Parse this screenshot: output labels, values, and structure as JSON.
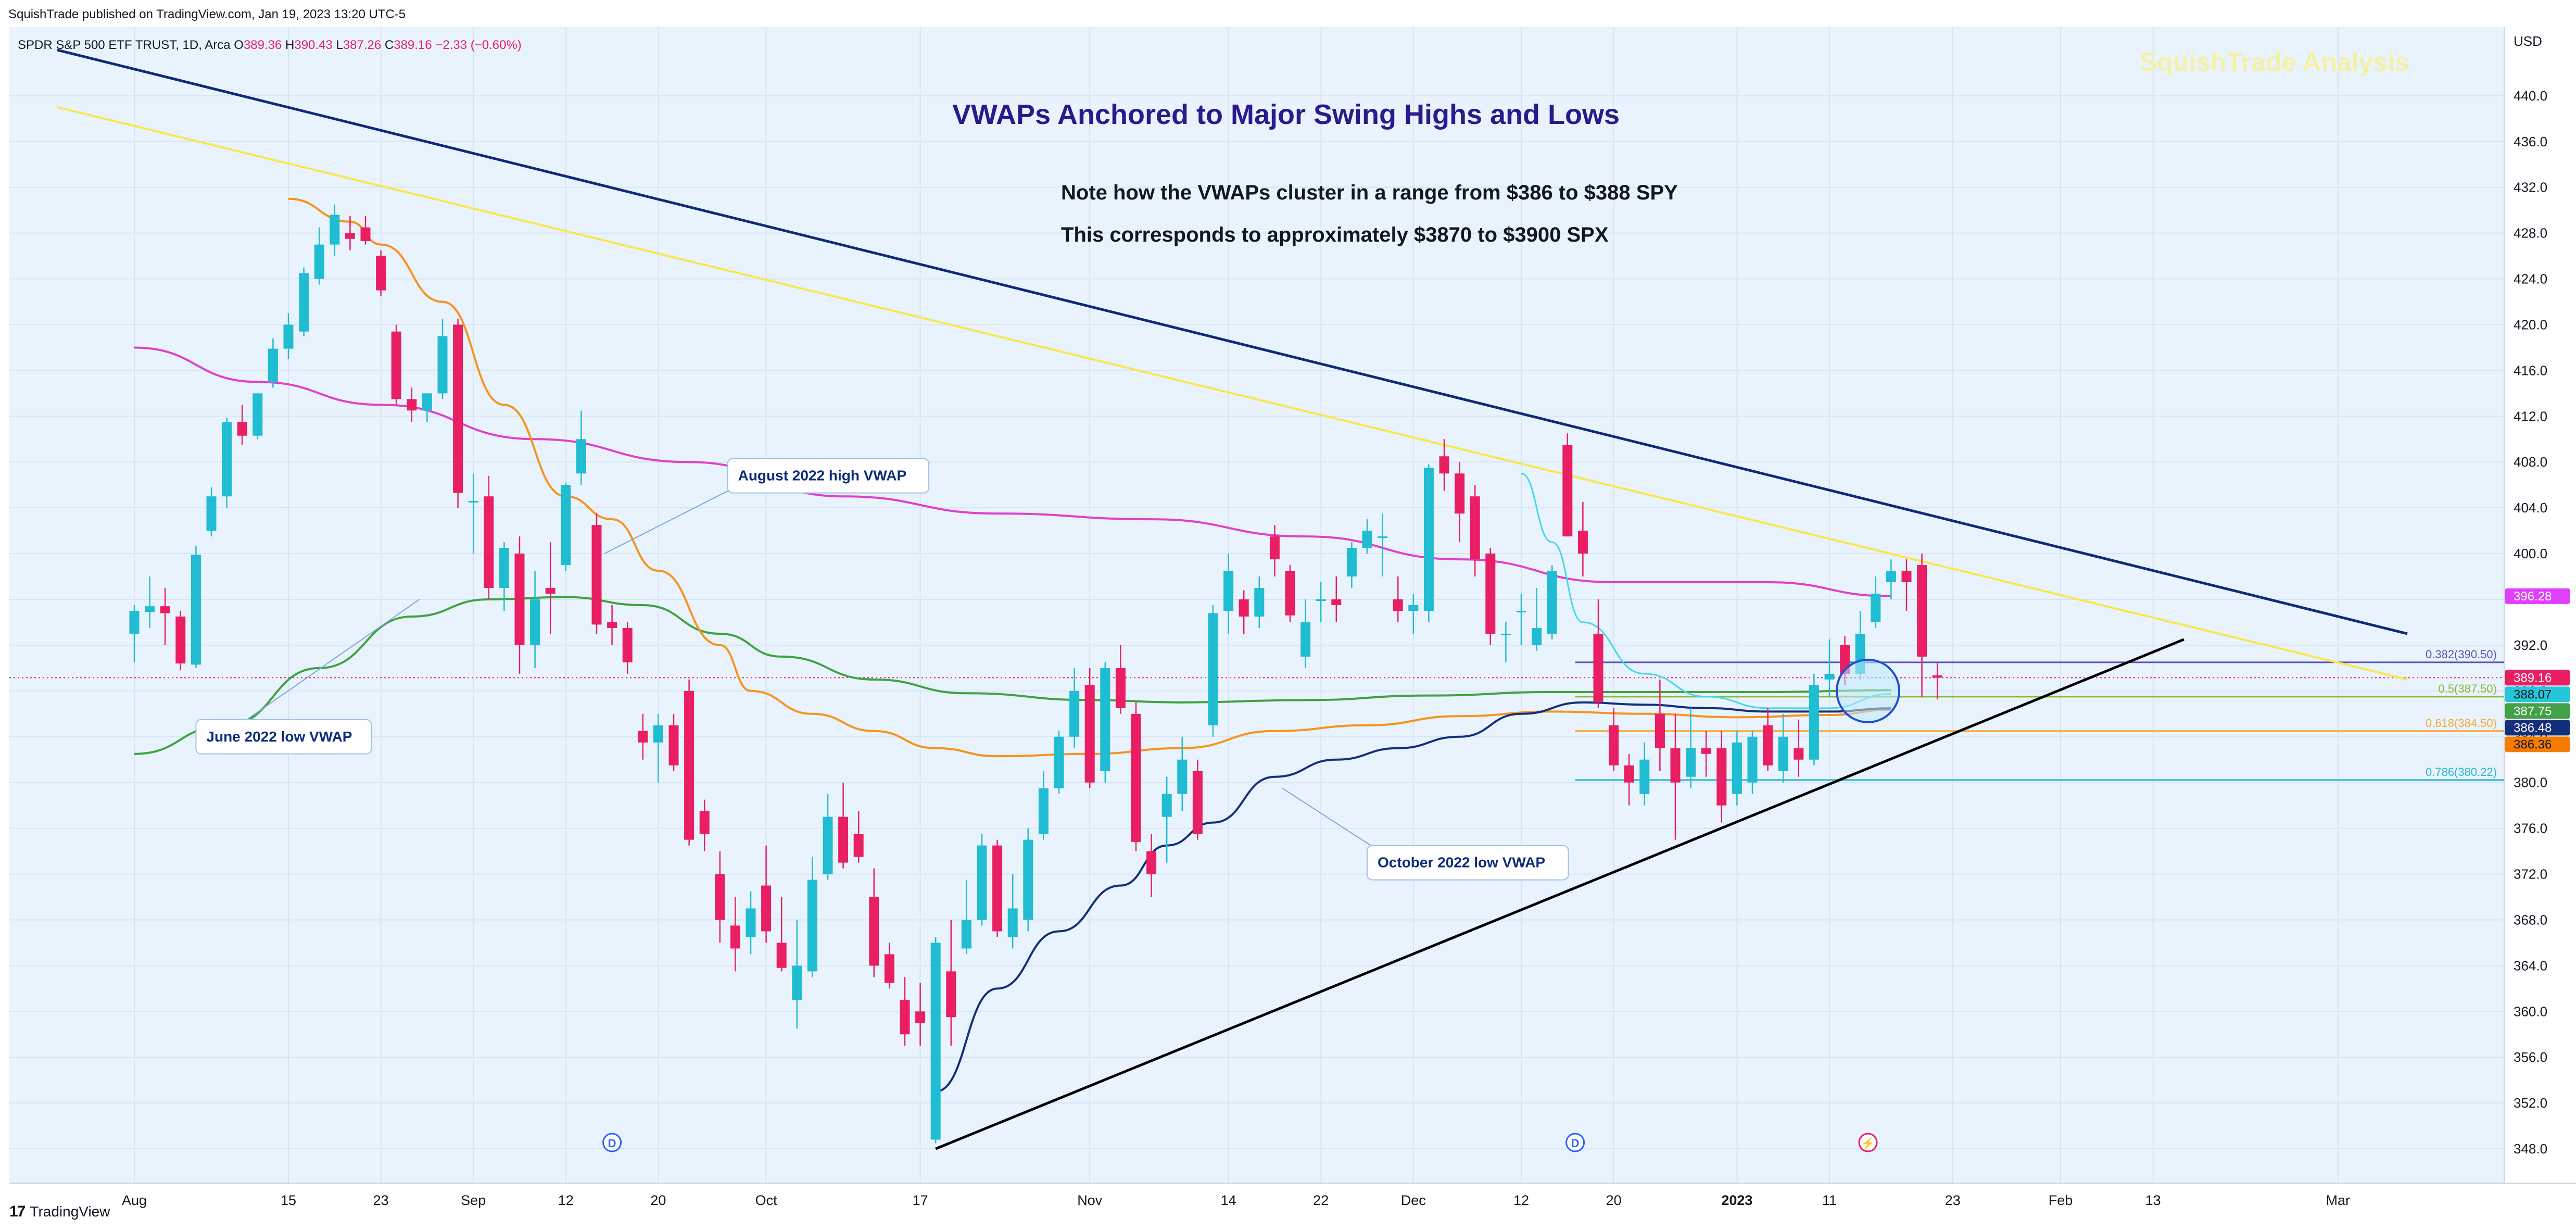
{
  "published": "SquishTrade published on TradingView.com, Jan 19, 2023 13:20 UTC-5",
  "brand_footer": "TradingView",
  "symbol_title": "SPDR S&P 500 ETF TRUST, 1D, Arca",
  "ohlc": {
    "o_label": "O",
    "o": "389.36",
    "h_label": "H",
    "h": "390.43",
    "l_label": "L",
    "l": "387.26",
    "c_label": "C",
    "c": "389.16",
    "chg": "−2.33 (−0.60%)"
  },
  "watermark": "SquishTrade Analysis",
  "currency": "USD",
  "colors": {
    "bg": "#e9f3fd",
    "up": "#1fbcd2",
    "down": "#e91e63",
    "title": "#2a1a8c",
    "navy": "#0d2b7a",
    "yellow": "#f7e84a",
    "magenta": "#e040c8",
    "orange": "#f7931e",
    "green": "#3ea43e",
    "darkblue": "#142f7a",
    "cyan": "#44d8e8",
    "black": "#000000"
  },
  "chart_data": {
    "type": "candlestick",
    "title": "VWAPs Anchored to Major Swing Highs and Lows",
    "notes": [
      "Note how the VWAPs cluster in a range from $386 to $388 SPY",
      "This corresponds to approximately $3870 to $3900 SPX"
    ],
    "ylim": [
      345,
      446
    ],
    "price_ticks": [
      440,
      436,
      432,
      428,
      424,
      420,
      416,
      412,
      408,
      404,
      400,
      396,
      392,
      388,
      384,
      380,
      376,
      372,
      368,
      364,
      360,
      356,
      352,
      348
    ],
    "time_ticks": [
      {
        "label": "Aug",
        "i": 0
      },
      {
        "label": "15",
        "i": 10
      },
      {
        "label": "23",
        "i": 16
      },
      {
        "label": "Sep",
        "i": 22
      },
      {
        "label": "12",
        "i": 28
      },
      {
        "label": "20",
        "i": 34
      },
      {
        "label": "Oct",
        "i": 41
      },
      {
        "label": "17",
        "i": 51
      },
      {
        "label": "Nov",
        "i": 62
      },
      {
        "label": "14",
        "i": 71
      },
      {
        "label": "22",
        "i": 77
      },
      {
        "label": "Dec",
        "i": 83
      },
      {
        "label": "12",
        "i": 90
      },
      {
        "label": "20",
        "i": 96
      },
      {
        "label": "2023",
        "i": 104,
        "bold": true
      },
      {
        "label": "11",
        "i": 110
      },
      {
        "label": "23",
        "i": 118
      },
      {
        "label": "Feb",
        "i": 125
      },
      {
        "label": "13",
        "i": 131
      },
      {
        "label": "Mar",
        "i": 143
      }
    ],
    "candles": [
      [
        393.0,
        395.5,
        390.5,
        395.0
      ],
      [
        394.9,
        398.0,
        393.5,
        395.4
      ],
      [
        395.4,
        397.0,
        392.0,
        394.8
      ],
      [
        394.5,
        395.0,
        389.8,
        390.4
      ],
      [
        390.3,
        400.7,
        390.0,
        399.9
      ],
      [
        402.0,
        405.8,
        401.5,
        405.0
      ],
      [
        405.0,
        411.9,
        404.0,
        411.5
      ],
      [
        411.5,
        413.0,
        409.5,
        410.3
      ],
      [
        410.3,
        414.0,
        410.0,
        414.0
      ],
      [
        415.0,
        418.8,
        414.5,
        417.9
      ],
      [
        417.9,
        421.0,
        417.0,
        420.0
      ],
      [
        419.4,
        425.0,
        419.0,
        424.5
      ],
      [
        424.0,
        428.5,
        423.5,
        427.0
      ],
      [
        427.0,
        430.5,
        426.0,
        429.6
      ],
      [
        428.0,
        429.5,
        426.5,
        427.5
      ],
      [
        428.5,
        429.5,
        427.0,
        427.3
      ],
      [
        426.0,
        426.5,
        422.5,
        423.0
      ],
      [
        419.4,
        420.0,
        413.0,
        413.5
      ],
      [
        413.5,
        414.5,
        411.5,
        412.5
      ],
      [
        412.5,
        414.0,
        411.5,
        414.0
      ],
      [
        414.0,
        420.5,
        413.5,
        419.0
      ],
      [
        420.0,
        420.5,
        404.0,
        405.3
      ],
      [
        404.5,
        407.0,
        400.0,
        404.6
      ],
      [
        405.0,
        406.8,
        396.0,
        397.0
      ],
      [
        397.0,
        401.0,
        395.0,
        400.5
      ],
      [
        400.0,
        401.5,
        389.5,
        392.0
      ],
      [
        392.0,
        398.5,
        390.0,
        396.0
      ],
      [
        397.0,
        401.0,
        393.0,
        396.5
      ],
      [
        399.0,
        406.2,
        398.5,
        406.0
      ],
      [
        407.0,
        412.5,
        406.0,
        410.0
      ],
      [
        402.5,
        403.5,
        393.0,
        393.8
      ],
      [
        394.0,
        395.5,
        392.0,
        393.5
      ],
      [
        393.5,
        394.0,
        389.5,
        390.5
      ],
      [
        384.5,
        386.0,
        382.0,
        383.5
      ],
      [
        383.5,
        386.0,
        380.0,
        385.0
      ],
      [
        385.0,
        386.0,
        381.0,
        381.5
      ],
      [
        388.0,
        389.0,
        374.5,
        375.0
      ],
      [
        377.5,
        378.5,
        374.0,
        375.5
      ],
      [
        372.0,
        374.0,
        366.0,
        368.0
      ],
      [
        367.5,
        370.0,
        363.5,
        365.5
      ],
      [
        366.5,
        370.5,
        365.0,
        369.0
      ],
      [
        371.0,
        374.5,
        366.0,
        367.0
      ],
      [
        366.0,
        370.0,
        363.5,
        363.8
      ],
      [
        361.0,
        368.0,
        358.5,
        364.0
      ],
      [
        363.5,
        373.5,
        363.0,
        371.5
      ],
      [
        372.0,
        379.0,
        371.5,
        377.0
      ],
      [
        377.0,
        380.0,
        372.5,
        373.0
      ],
      [
        375.5,
        377.5,
        373.0,
        373.5
      ],
      [
        370.0,
        372.5,
        363.0,
        364.0
      ],
      [
        365.0,
        366.0,
        362.0,
        362.5
      ],
      [
        361.0,
        363.0,
        357.0,
        358.0
      ],
      [
        360.0,
        362.5,
        357.0,
        359.0
      ],
      [
        348.8,
        366.5,
        348.5,
        366.0
      ],
      [
        363.5,
        368.0,
        357.0,
        359.5
      ],
      [
        365.5,
        371.5,
        365.0,
        368.0
      ],
      [
        368.0,
        375.5,
        367.5,
        374.5
      ],
      [
        374.5,
        375.0,
        366.5,
        367.0
      ],
      [
        366.5,
        372.0,
        365.5,
        369.0
      ],
      [
        368.0,
        376.0,
        367.0,
        375.0
      ],
      [
        375.5,
        381.0,
        375.0,
        379.5
      ],
      [
        379.5,
        384.5,
        379.0,
        384.0
      ],
      [
        384.0,
        390.0,
        383.0,
        388.0
      ],
      [
        388.5,
        390.0,
        379.5,
        380.0
      ],
      [
        381.0,
        390.5,
        380.0,
        390.0
      ],
      [
        390.0,
        392.0,
        386.0,
        386.5
      ],
      [
        386.0,
        387.0,
        374.0,
        374.8
      ],
      [
        374.0,
        375.5,
        370.0,
        372.0
      ],
      [
        377.0,
        380.5,
        373.0,
        379.0
      ],
      [
        379.0,
        384.0,
        377.5,
        382.0
      ],
      [
        381.0,
        382.0,
        375.0,
        375.5
      ],
      [
        385.0,
        395.5,
        384.0,
        394.8
      ],
      [
        395.0,
        400.0,
        393.0,
        398.5
      ],
      [
        396.0,
        396.8,
        393.0,
        394.5
      ],
      [
        394.5,
        398.0,
        393.5,
        397.0
      ],
      [
        401.5,
        402.5,
        398.0,
        399.5
      ],
      [
        398.5,
        399.0,
        394.0,
        394.6
      ],
      [
        391.0,
        396.0,
        390.0,
        394.0
      ],
      [
        396.0,
        397.5,
        394.0,
        396.0
      ],
      [
        396.0,
        398.0,
        394.0,
        395.5
      ],
      [
        398.0,
        401.0,
        397.0,
        400.5
      ],
      [
        400.5,
        403.0,
        400.0,
        402.0
      ],
      [
        401.5,
        403.5,
        398.0,
        401.5
      ],
      [
        396.0,
        398.0,
        394.0,
        395.0
      ],
      [
        395.0,
        396.5,
        393.0,
        395.5
      ],
      [
        395.0,
        407.8,
        394.0,
        407.5
      ],
      [
        408.5,
        410.0,
        405.5,
        407.0
      ],
      [
        407.0,
        408.0,
        401.0,
        403.5
      ],
      [
        405.0,
        406.0,
        398.0,
        399.5
      ],
      [
        400.0,
        400.5,
        392.0,
        393.0
      ],
      [
        393.0,
        394.0,
        390.5,
        393.0
      ],
      [
        395.0,
        396.5,
        392.0,
        395.0
      ],
      [
        392.0,
        397.0,
        391.5,
        393.5
      ],
      [
        393.0,
        399.0,
        392.5,
        398.5
      ],
      [
        409.5,
        410.5,
        401.5,
        401.5
      ],
      [
        402.0,
        404.5,
        398.0,
        400.0
      ],
      [
        393.0,
        396.0,
        386.5,
        387.0
      ],
      [
        385.0,
        386.5,
        381.0,
        381.5
      ],
      [
        381.5,
        382.5,
        378.0,
        380.0
      ],
      [
        379.0,
        383.5,
        378.0,
        382.0
      ],
      [
        386.0,
        389.0,
        381.0,
        383.0
      ],
      [
        383.0,
        386.0,
        375.0,
        380.0
      ],
      [
        380.5,
        386.5,
        379.5,
        383.0
      ],
      [
        383.0,
        384.5,
        380.5,
        382.5
      ],
      [
        383.0,
        384.5,
        376.5,
        378.0
      ],
      [
        379.0,
        384.5,
        378.0,
        383.5
      ],
      [
        380.0,
        384.5,
        379.0,
        384.0
      ],
      [
        385.0,
        386.5,
        381.0,
        381.5
      ],
      [
        381.0,
        386.0,
        380.0,
        384.0
      ],
      [
        383.0,
        385.5,
        380.5,
        382.0
      ],
      [
        382.0,
        389.5,
        381.5,
        388.5
      ],
      [
        389.0,
        392.5,
        387.5,
        389.5
      ],
      [
        392.0,
        392.8,
        388.5,
        389.5
      ],
      [
        389.5,
        395.0,
        389.0,
        393.0
      ],
      [
        394.0,
        398.0,
        393.5,
        396.5
      ],
      [
        397.5,
        399.5,
        396.0,
        398.5
      ],
      [
        398.5,
        399.5,
        395.0,
        397.5
      ],
      [
        399.0,
        400.0,
        387.5,
        391.0
      ],
      [
        389.36,
        390.43,
        387.26,
        389.16
      ]
    ],
    "moving_average_pink": [
      [
        0,
        418.0
      ],
      [
        8,
        415.0
      ],
      [
        16,
        413.0
      ],
      [
        26,
        410.0
      ],
      [
        36,
        408.0
      ],
      [
        46,
        405.0
      ],
      [
        56,
        403.5
      ],
      [
        66,
        403.0
      ],
      [
        76,
        401.5
      ],
      [
        86,
        399.5
      ],
      [
        96,
        397.5
      ],
      [
        106,
        397.5
      ],
      [
        114,
        396.28
      ]
    ],
    "vwap_june_low": [
      [
        0,
        382.5
      ],
      [
        6,
        385.0
      ],
      [
        12,
        390.0
      ],
      [
        18,
        394.5
      ],
      [
        23,
        396.0
      ],
      [
        28,
        396.2
      ],
      [
        33,
        395.5
      ],
      [
        38,
        393.0
      ],
      [
        42,
        391.0
      ],
      [
        48,
        389.0
      ],
      [
        54,
        387.8
      ],
      [
        62,
        387.2
      ],
      [
        68,
        387.0
      ],
      [
        76,
        387.2
      ],
      [
        84,
        387.6
      ],
      [
        92,
        387.9
      ],
      [
        100,
        387.9
      ],
      [
        106,
        387.9
      ],
      [
        114,
        388.07
      ]
    ],
    "vwap_aug_high": [
      [
        10,
        431.0
      ],
      [
        14,
        429.0
      ],
      [
        16,
        427.0
      ],
      [
        20,
        422.0
      ],
      [
        24,
        413.0
      ],
      [
        28,
        405.0
      ],
      [
        31,
        403.0
      ],
      [
        34,
        398.5
      ],
      [
        38,
        392.0
      ],
      [
        40,
        388.0
      ],
      [
        44,
        386.0
      ],
      [
        48,
        384.5
      ],
      [
        52,
        383.0
      ],
      [
        56,
        382.3
      ],
      [
        62,
        382.5
      ],
      [
        68,
        383.0
      ],
      [
        74,
        384.5
      ],
      [
        80,
        385.0
      ],
      [
        86,
        385.8
      ],
      [
        92,
        386.2
      ],
      [
        98,
        386.0
      ],
      [
        104,
        385.7
      ],
      [
        110,
        385.9
      ],
      [
        114,
        386.36
      ]
    ],
    "vwap_oct_low": [
      [
        52,
        353.0
      ],
      [
        56,
        362.0
      ],
      [
        60,
        367.0
      ],
      [
        64,
        371.0
      ],
      [
        67,
        374.5
      ],
      [
        70,
        376.5
      ],
      [
        74,
        380.5
      ],
      [
        78,
        382.0
      ],
      [
        82,
        383.0
      ],
      [
        86,
        384.0
      ],
      [
        90,
        386.0
      ],
      [
        94,
        387.0
      ],
      [
        98,
        386.8
      ],
      [
        102,
        386.5
      ],
      [
        106,
        386.2
      ],
      [
        110,
        386.2
      ],
      [
        114,
        386.48
      ]
    ],
    "vwap_dec_high": [
      [
        90,
        407.0
      ],
      [
        92,
        401.0
      ],
      [
        94,
        394.0
      ],
      [
        98,
        389.5
      ],
      [
        102,
        387.5
      ],
      [
        106,
        386.5
      ],
      [
        110,
        386.5
      ],
      [
        114,
        387.75
      ]
    ],
    "trend_navy": [
      [
        -5,
        444.0
      ],
      [
        147.5,
        393.0
      ]
    ],
    "trend_yellow": [
      [
        -5,
        439.0
      ],
      [
        147.5,
        389.0
      ]
    ],
    "trend_black": [
      [
        52,
        348.0
      ],
      [
        133,
        392.5
      ]
    ],
    "fib_levels": [
      {
        "label": "0.382(390.50)",
        "value": 390.5,
        "color": "#5e53b8"
      },
      {
        "label": "0.5(387.50)",
        "value": 387.5,
        "color": "#8ab830"
      },
      {
        "label": "0.618(384.50)",
        "value": 384.5,
        "color": "#f7a636"
      },
      {
        "label": "0.786(380.22)",
        "value": 380.22,
        "color": "#25b8cc"
      }
    ],
    "price_tags": [
      {
        "label": "396.28",
        "value": 396.28,
        "bg": "#e040fb",
        "fg": "#ffffff"
      },
      {
        "label": "389.16",
        "value": 389.16,
        "bg": "#e91e63",
        "fg": "#ffffff"
      },
      {
        "label": "388.07",
        "value": 388.07,
        "bg": "#26c6da",
        "fg": "#131722"
      },
      {
        "label": "387.75",
        "value": 387.75,
        "bg": "#43a047",
        "fg": "#ffffff"
      },
      {
        "label": "386.48",
        "value": 386.48,
        "bg": "#142f7a",
        "fg": "#ffffff"
      },
      {
        "label": "386.36",
        "value": 386.36,
        "bg": "#f57c00",
        "fg": "#131722"
      }
    ],
    "annotations": [
      {
        "text": "August 2022 high VWAP",
        "box_i": 38.5,
        "box_p": 408.3,
        "to_i": 30.5,
        "to_p": 400.0
      },
      {
        "text": "June 2022 low VWAP",
        "box_i": 4.0,
        "box_p": 385.5,
        "to_i": 18.5,
        "to_p": 396.0
      },
      {
        "text": "October 2022 low VWAP",
        "box_i": 80.0,
        "box_p": 374.5,
        "to_i": 74.5,
        "to_p": 379.5
      }
    ],
    "event_markers": [
      {
        "label": "D",
        "i": 31
      },
      {
        "label": "D",
        "i": 93.5
      },
      {
        "label": "⚡",
        "i": 112.5
      }
    ],
    "circle_marker": {
      "i": 112.5,
      "p": 388.0
    }
  }
}
